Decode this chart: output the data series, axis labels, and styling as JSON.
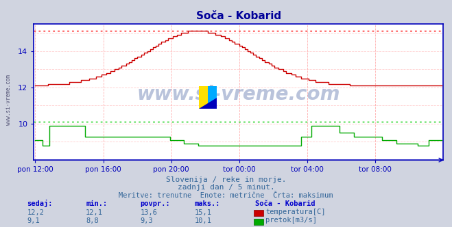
{
  "title": "Soča - Kobarid",
  "bg_color": "#d0d4e0",
  "plot_bg_color": "#ffffff",
  "grid_color_v": "#ffb0b0",
  "grid_color_h": "#ffcccc",
  "temp_color": "#cc0000",
  "flow_color": "#00aa00",
  "max_line_color_temp": "#ff0000",
  "max_line_color_flow": "#00cc00",
  "axis_color": "#0000bb",
  "title_color": "#000099",
  "watermark": "www.si-vreme.com",
  "watermark_color": "#1a3a8a",
  "subtitle1": "Slovenija / reke in morje.",
  "subtitle2": "zadnji dan / 5 minut.",
  "subtitle3": "Meritve: trenutne  Enote: metrične  Črta: maksimum",
  "subtitle_color": "#336699",
  "x_ticks_labels": [
    "pon 12:00",
    "pon 16:00",
    "pon 20:00",
    "tor 00:00",
    "tor 04:00",
    "tor 08:00"
  ],
  "x_ticks_pos": [
    0,
    48,
    96,
    144,
    192,
    240
  ],
  "n_points": 288,
  "temp_max_line": 15.1,
  "flow_max_line": 10.1,
  "ylim": [
    8.0,
    15.5
  ],
  "yticks": [
    10,
    12,
    14
  ],
  "table_headers": [
    "sedaj:",
    "min.:",
    "povpr.:",
    "maks.:"
  ],
  "table_row1": [
    "12,2",
    "12,1",
    "13,6",
    "15,1"
  ],
  "table_row2": [
    "9,1",
    "8,8",
    "9,3",
    "10,1"
  ],
  "station_label": "Soča - Kobarid",
  "legend_temp": "temperatura[C]",
  "legend_flow": "pretok[m3/s]"
}
